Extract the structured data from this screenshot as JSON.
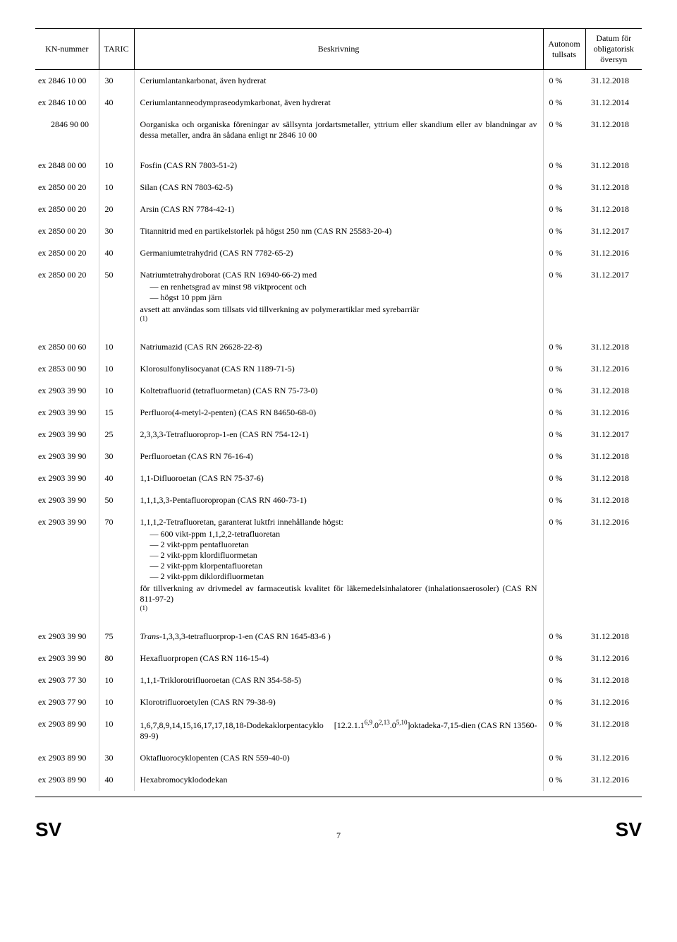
{
  "header": {
    "kn": "KN-nummer",
    "taric": "TARIC",
    "desc": "Beskrivning",
    "duty": "Autonom tullsats",
    "date": "Datum för obligatorisk översyn"
  },
  "rows": [
    {
      "kn": "ex 2846 10 00",
      "taric": "30",
      "desc": "Ceriumlantankarbonat, även hydrerat",
      "duty": "0 %",
      "date": "31.12.2018"
    },
    {
      "kn": "ex 2846 10 00",
      "taric": "40",
      "desc": "Ceriumlantanneodympraseodymkarbonat, även hydrerat",
      "duty": "0 %",
      "date": "31.12.2014"
    },
    {
      "kn": "2846 90 00",
      "taric": "",
      "desc": "Oorganiska och organiska föreningar av sällsynta jordartsmetaller, yttrium eller skandium eller av blandningar av dessa metaller, andra än sådana enligt nr 2846 10 00",
      "duty": "0 %",
      "date": "31.12.2018",
      "indent": true
    },
    {
      "kn": "ex 2848 00 00",
      "taric": "10",
      "desc": "Fosfin (CAS RN 7803-51-2)",
      "duty": "0 %",
      "date": "31.12.2018"
    },
    {
      "kn": "ex 2850 00 20",
      "taric": "10",
      "desc": "Silan (CAS RN 7803-62-5)",
      "duty": "0 %",
      "date": "31.12.2018"
    },
    {
      "kn": "ex 2850 00 20",
      "taric": "20",
      "desc": "Arsin (CAS RN 7784-42-1)",
      "duty": "0 %",
      "date": "31.12.2018"
    },
    {
      "kn": "ex 2850 00 20",
      "taric": "30",
      "desc": "Titannitrid med en partikelstorlek på högst 250 nm (CAS RN 25583-20-4)",
      "duty": "0 %",
      "date": "31.12.2017"
    },
    {
      "kn": "ex 2850 00 20",
      "taric": "40",
      "desc": "Germaniumtetrahydrid (CAS RN 7782-65-2)",
      "duty": "0 %",
      "date": "31.12.2016"
    },
    {
      "kn": "ex 2850 00 20",
      "taric": "50",
      "desc": "Natriumtetrahydroborat (CAS RN 16940-66-2) med",
      "list": [
        "en renhetsgrad av minst 98 viktprocent och",
        "högst 10 ppm järn"
      ],
      "post": "avsett att användas som tillsats vid tillverkning av polymerartiklar med syrebarriär",
      "footnote": "(1)",
      "duty": "0 %",
      "date": "31.12.2017"
    },
    {
      "kn": "ex 2850 00 60",
      "taric": "10",
      "desc": "Natriumazid (CAS RN 26628-22-8)",
      "duty": "0 %",
      "date": "31.12.2018"
    },
    {
      "kn": "ex 2853 00 90",
      "taric": "10",
      "desc": "Klorosulfonylisocyanat (CAS RN 1189-71-5)",
      "duty": "0 %",
      "date": "31.12.2016"
    },
    {
      "kn": "ex 2903 39 90",
      "taric": "10",
      "desc": "Koltetrafluorid (tetrafluormetan) (CAS RN 75-73-0)",
      "duty": "0 %",
      "date": "31.12.2018"
    },
    {
      "kn": "ex 2903 39 90",
      "taric": "15",
      "desc": "Perfluoro(4-metyl-2-penten) (CAS RN 84650-68-0)",
      "duty": "0 %",
      "date": "31.12.2016"
    },
    {
      "kn": "ex 2903 39 90",
      "taric": "25",
      "desc": "2,3,3,3-Tetrafluoroprop-1-en (CAS RN 754-12-1)",
      "duty": "0 %",
      "date": "31.12.2017"
    },
    {
      "kn": "ex 2903 39 90",
      "taric": "30",
      "desc": "Perfluoroetan (CAS RN 76-16-4)",
      "duty": "0 %",
      "date": "31.12.2018"
    },
    {
      "kn": "ex 2903 39 90",
      "taric": "40",
      "desc": "1,1-Difluoroetan (CAS RN 75-37-6)",
      "duty": "0 %",
      "date": "31.12.2018"
    },
    {
      "kn": "ex 2903 39 90",
      "taric": "50",
      "desc": "1,1,1,3,3-Pentafluoropropan (CAS RN 460-73-1)",
      "duty": "0 %",
      "date": "31.12.2018"
    },
    {
      "kn": "ex 2903 39 90",
      "taric": "70",
      "desc": "1,1,1,2-Tetrafluoretan, garanterat luktfri innehållande högst:",
      "list": [
        "600 vikt-ppm 1,1,2,2-tetrafluoretan",
        "2 vikt-ppm pentafluoretan",
        "2 vikt-ppm klordifluormetan",
        "2 vikt-ppm klorpentafluoretan",
        "2 vikt-ppm diklordifluormetan"
      ],
      "post": "för tillverkning av drivmedel av farmaceutisk kvalitet för läkemedelsinhalatorer (inhalationsaerosoler) (CAS RN 811-97-2)",
      "footnote": "(1)",
      "duty": "0 %",
      "date": "31.12.2016"
    },
    {
      "kn": "ex 2903 39 90",
      "taric": "75",
      "desc_html": "<span class='italic'>Trans</span>-1,3,3,3-tetrafluorprop-1-en (CAS RN 1645-83-6 )",
      "duty": "0 %",
      "date": "31.12.2018"
    },
    {
      "kn": "ex 2903 39 90",
      "taric": "80",
      "desc": "Hexafluorpropen (CAS RN 116-15-4)",
      "duty": "0 %",
      "date": "31.12.2016"
    },
    {
      "kn": "ex 2903 77 30",
      "taric": "10",
      "desc": "1,1,1-Triklorotrifluoroetan (CAS RN 354-58-5)",
      "duty": "0 %",
      "date": "31.12.2018"
    },
    {
      "kn": "ex 2903 77 90",
      "taric": "10",
      "desc": "Klorotrifluoroetylen (CAS RN 79-38-9)",
      "duty": "0 %",
      "date": "31.12.2016"
    },
    {
      "kn": "ex 2903 89 90",
      "taric": "10",
      "desc_html": "1,6,7,8,9,14,15,16,17,17,18,18-Dodekaklorpentacyklo &nbsp;&nbsp;&nbsp; [12.2.1.1<span class='sup'>6,9</span>.0<span class='sup'>2,13</span>.0<span class='sup'>5,10</span>]oktadeka-7,15-dien (CAS RN 13560-89-9)",
      "duty": "0 %",
      "date": "31.12.2018"
    },
    {
      "kn": "ex 2903 89 90",
      "taric": "30",
      "desc": "Oktafluorocyklopenten (CAS RN 559-40-0)",
      "duty": "0 %",
      "date": "31.12.2016"
    },
    {
      "kn": "ex 2903 89 90",
      "taric": "40",
      "desc": "Hexabromocyklododekan",
      "duty": "0 %",
      "date": "31.12.2016"
    }
  ],
  "spacers_after": [
    2,
    8,
    17
  ],
  "footer": {
    "left": "SV",
    "page": "7",
    "right": "SV"
  }
}
